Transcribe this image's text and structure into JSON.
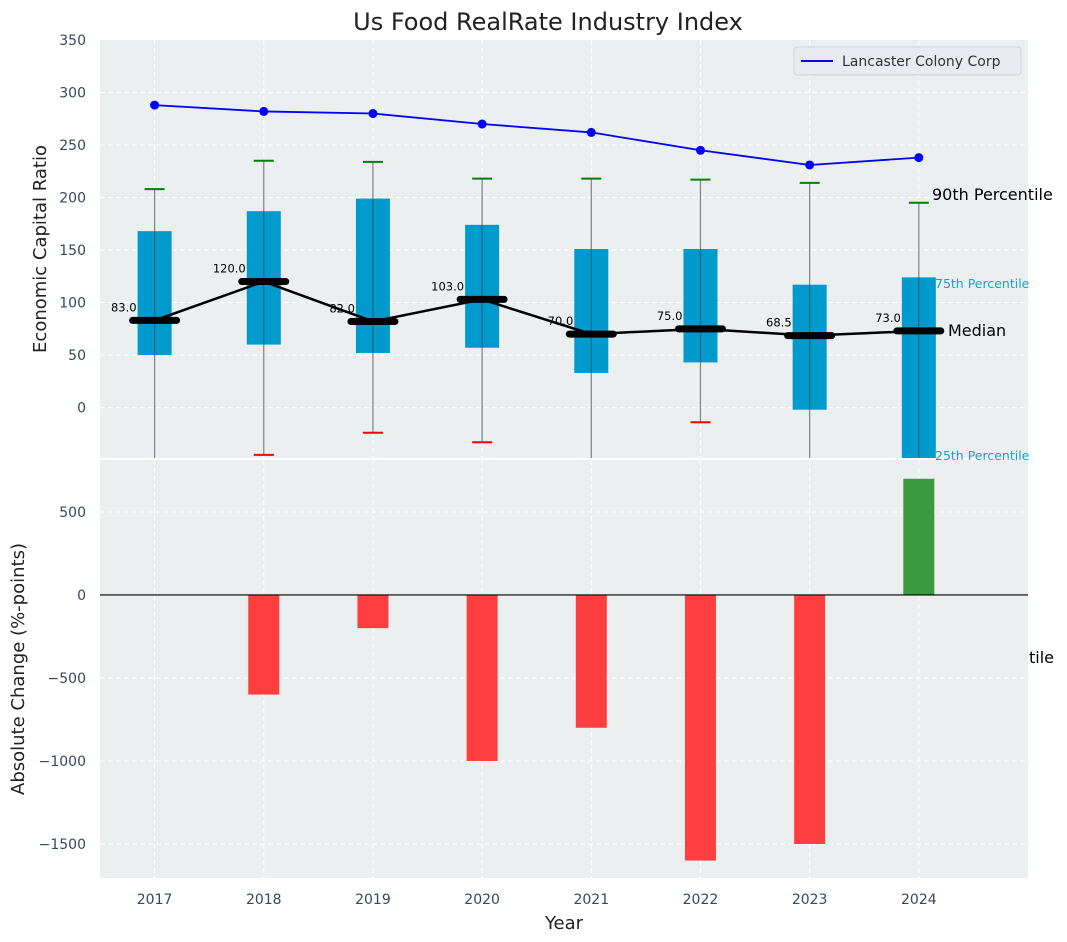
{
  "chart_data": [
    {
      "type": "box",
      "title": "Us Food RealRate Industry Index",
      "xlabel": "",
      "ylabel": "Economic Capital Ratio",
      "ylim": [
        -48,
        350
      ],
      "xlim": [
        2016.5,
        2025.0
      ],
      "yticks": [
        0,
        50,
        100,
        150,
        200,
        250,
        300,
        350
      ],
      "categories": [
        "2017",
        "2018",
        "2019",
        "2020",
        "2021",
        "2022",
        "2023",
        "2024"
      ],
      "grid": true,
      "legend": {
        "placement": "top-right",
        "entries": [
          "Lancaster Colony Corp"
        ]
      },
      "boxes": [
        {
          "year": 2017,
          "p10": null,
          "p25": 50,
          "median": 83.0,
          "p75": 168,
          "p90": 208
        },
        {
          "year": 2018,
          "p10": -45,
          "p25": 60,
          "median": 120.0,
          "p75": 187,
          "p90": 235
        },
        {
          "year": 2019,
          "p10": -24,
          "p25": 52,
          "median": 82.0,
          "p75": 199,
          "p90": 234
        },
        {
          "year": 2020,
          "p10": -33,
          "p25": 57,
          "median": 103.0,
          "p75": 174,
          "p90": 218
        },
        {
          "year": 2021,
          "p10": null,
          "p25": 33,
          "median": 70.0,
          "p75": 151,
          "p90": 218
        },
        {
          "year": 2022,
          "p10": -14,
          "p25": 43,
          "median": 75.0,
          "p75": 151,
          "p90": 217
        },
        {
          "year": 2023,
          "p10": null,
          "p25": -2,
          "median": 68.5,
          "p75": 117,
          "p90": 214
        },
        {
          "year": 2024,
          "p10": null,
          "p25": -60,
          "median": 73.0,
          "p75": 124,
          "p90": 195
        }
      ],
      "median_labels": [
        "83.0",
        "120.0",
        "82.0",
        "103.0",
        "70.0",
        "75.0",
        "68.5",
        "73.0"
      ],
      "series": [
        {
          "name": "Lancaster Colony Corp",
          "color": "#0000ff",
          "x": [
            2017,
            2018,
            2019,
            2020,
            2021,
            2022,
            2023,
            2024
          ],
          "values": [
            288,
            282,
            280,
            270,
            262,
            245,
            231,
            238
          ]
        }
      ],
      "annotations": {
        "p90": "90th Percentile",
        "p75": "75th Percentile",
        "median": "Median",
        "p25": "25th Percentile",
        "p10_clipped": "tile"
      },
      "colors": {
        "box": "#009acd",
        "median": "#000000",
        "p90_cap": "#008000",
        "p10_cap": "#ff0000",
        "whisker": "#808080",
        "background": "#ebeff0"
      }
    },
    {
      "type": "bar",
      "xlabel": "Year",
      "ylabel": "Absolute Change (%-points)",
      "ylim": [
        -1705,
        813
      ],
      "yticks": [
        -1500,
        -1000,
        -500,
        0,
        500
      ],
      "ytick_labels": [
        "−1500",
        "−1000",
        "−500",
        "0",
        "500"
      ],
      "categories": [
        "2017",
        "2018",
        "2019",
        "2020",
        "2021",
        "2022",
        "2023",
        "2024"
      ],
      "values": [
        0,
        -600,
        -200,
        -1000,
        -800,
        -1600,
        -1500,
        700
      ],
      "colors": {
        "positive": "#3a9b3e",
        "negative": "#ff3f3f"
      },
      "grid": true
    }
  ]
}
